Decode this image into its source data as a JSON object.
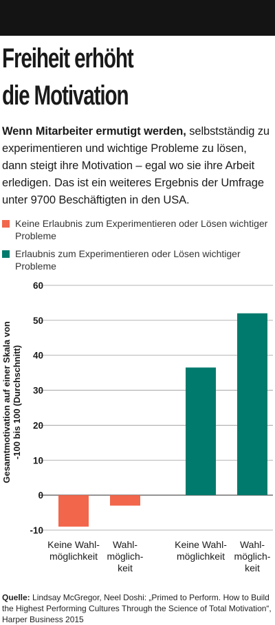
{
  "header": {
    "title_line1": "Freiheit erhöht",
    "title_line2": "die Motivation"
  },
  "intro": {
    "bold": "Wenn Mitarbeiter ermutigt werden,",
    "text": " selbstständig zu experimentieren und wichtige Probleme zu lösen, dann steigt ihre Motivation – egal wo sie ihre Arbeit erledigen. Das ist ein weiteres Ergebnis der Umfrage unter 9700 Beschäftigten in den USA."
  },
  "colors": {
    "no_permission": "#f2664b",
    "permission": "#007a6c",
    "grid": "#9a9a9a"
  },
  "chart_data": {
    "type": "bar",
    "ylabel_line1": "Gesamtmotivation auf einer Skala von",
    "ylabel_line2": "-100 bis 100 (Durchschnitt)",
    "ylim": [
      -10,
      60
    ],
    "yticks": [
      -10,
      0,
      10,
      20,
      30,
      40,
      50,
      60
    ],
    "grid": true,
    "legend": "top",
    "series": [
      {
        "name": "Keine Erlaubnis zum Experimentieren oder Lösen wichtiger Probleme",
        "color": "#f2664b",
        "values": [
          -9,
          -3
        ]
      },
      {
        "name": "Erlaubnis zum Experimentieren oder Lösen wichtiger Probleme",
        "color": "#007a6c",
        "values": [
          36.5,
          52
        ]
      }
    ],
    "categories": [
      [
        "Keine Wahl-",
        "möglichkeit"
      ],
      [
        "Wahl-",
        "möglich-",
        "keit"
      ]
    ]
  },
  "source": {
    "label": "Quelle:",
    "text": " Lindsay McGregor, Neel Doshi: „Primed to Perform. How to Build the Highest Performing Cultures Through the Science of Total Motivation“, Harper Business 2015"
  }
}
